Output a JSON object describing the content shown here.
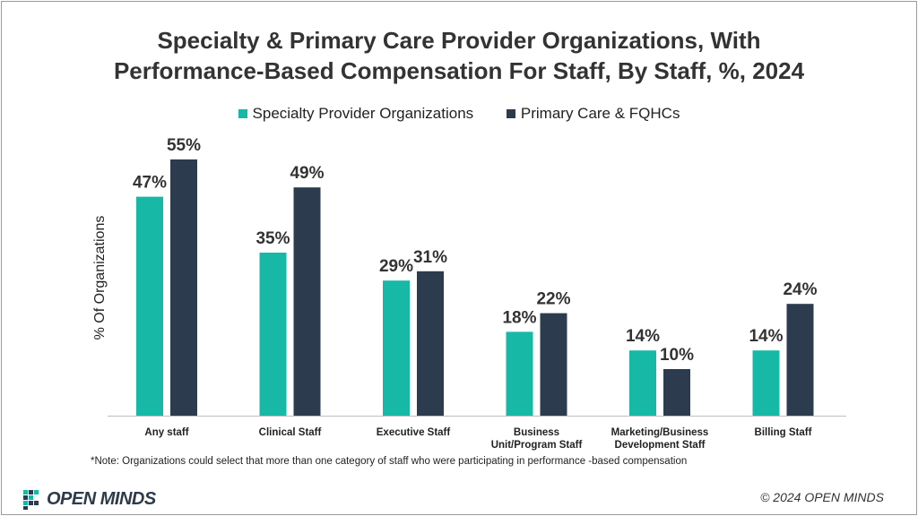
{
  "colors": {
    "specialty": "#17b8a6",
    "primary": "#2d3b4e",
    "text": "#333333"
  },
  "chart_data": {
    "type": "bar",
    "title": "Specialty & Primary Care Provider Organizations, With Performance-Based Compensation For Staff, By Staff, %, 2024",
    "title_lines": [
      "Specialty & Primary Care Provider Organizations, With",
      "Performance-Based Compensation For Staff, By Staff, %, 2024"
    ],
    "xlabel": "",
    "ylabel": "% Of Organizations",
    "ylim": [
      0,
      60
    ],
    "grid": false,
    "legend_position": "top-center",
    "categories": [
      "Any staff",
      "Clinical Staff",
      "Executive Staff",
      "Business Unit/Program Staff",
      "Marketing/Business Development Staff",
      "Billing Staff"
    ],
    "category_lines": [
      [
        "Any staff"
      ],
      [
        "Clinical Staff"
      ],
      [
        "Executive Staff"
      ],
      [
        "Business",
        "Unit/Program Staff"
      ],
      [
        "Marketing/Business",
        "Development Staff"
      ],
      [
        "Billing Staff"
      ]
    ],
    "series": [
      {
        "name": "Specialty Provider Organizations",
        "values": [
          47,
          35,
          29,
          18,
          14,
          14
        ],
        "labels": [
          "47%",
          "35%",
          "29%",
          "18%",
          "14%",
          "14%"
        ]
      },
      {
        "name": "Primary Care & FQHCs",
        "values": [
          55,
          49,
          31,
          22,
          10,
          24
        ],
        "labels": [
          "55%",
          "49%",
          "31%",
          "22%",
          "10%",
          "24%"
        ]
      }
    ]
  },
  "legend": {
    "specialty_label": "Specialty Provider Organizations",
    "primary_label": "Primary Care & FQHCs"
  },
  "note": "*Note: Organizations could select that more than one category of staff who were participating in performance -based compensation",
  "logo": {
    "text": "OPEN MINDS"
  },
  "copyright": "© 2024 OPEN MINDS"
}
